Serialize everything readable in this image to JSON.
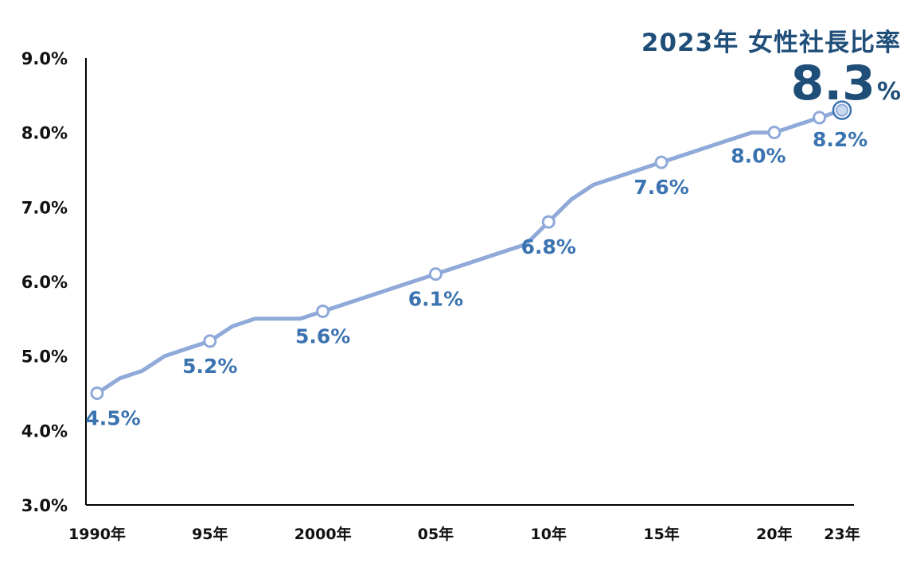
{
  "chart_data": {
    "type": "line",
    "title": "2023年 女性社長比率",
    "highlight": {
      "value": "8.3",
      "unit": "%"
    },
    "x": [
      1990,
      1991,
      1992,
      1993,
      1994,
      1995,
      1996,
      1997,
      1998,
      1999,
      2000,
      2001,
      2002,
      2003,
      2004,
      2005,
      2006,
      2007,
      2008,
      2009,
      2010,
      2011,
      2012,
      2013,
      2014,
      2015,
      2016,
      2017,
      2018,
      2019,
      2020,
      2021,
      2022,
      2023
    ],
    "values": [
      4.5,
      4.7,
      4.8,
      5.0,
      5.1,
      5.2,
      5.4,
      5.5,
      5.5,
      5.5,
      5.6,
      5.7,
      5.8,
      5.9,
      6.0,
      6.1,
      6.2,
      6.3,
      6.4,
      6.5,
      6.8,
      7.1,
      7.3,
      7.4,
      7.5,
      7.6,
      7.7,
      7.8,
      7.9,
      8.0,
      8.0,
      8.1,
      8.2,
      8.3
    ],
    "ylim": [
      3.0,
      9.0
    ],
    "yticks": [
      3.0,
      4.0,
      5.0,
      6.0,
      7.0,
      8.0,
      9.0
    ],
    "ytick_labels": [
      "3.0%",
      "4.0%",
      "5.0%",
      "6.0%",
      "7.0%",
      "8.0%",
      "9.0%"
    ],
    "xticks": [
      1990,
      1995,
      2000,
      2005,
      2010,
      2015,
      2020,
      2023
    ],
    "xtick_labels": [
      "1990年",
      "95年",
      "2000年",
      "05年",
      "10年",
      "15年",
      "20年",
      "23年"
    ],
    "markers": [
      1990,
      1995,
      2000,
      2005,
      2010,
      2015,
      2020,
      2022,
      2023
    ],
    "data_labels": [
      {
        "x": 1990,
        "text": "4.5%"
      },
      {
        "x": 1995,
        "text": "5.2%"
      },
      {
        "x": 2000,
        "text": "5.6%"
      },
      {
        "x": 2005,
        "text": "6.1%"
      },
      {
        "x": 2010,
        "text": "6.8%"
      },
      {
        "x": 2015,
        "text": "7.6%"
      },
      {
        "x": 2020,
        "text": "8.0%"
      },
      {
        "x": 2022,
        "text": "8.2%"
      }
    ],
    "colors": {
      "line": "#8fa9d9",
      "label": "#3a73b0",
      "title": "#1f4e79",
      "axis": "#000000"
    },
    "grid": false,
    "legend": "none"
  }
}
